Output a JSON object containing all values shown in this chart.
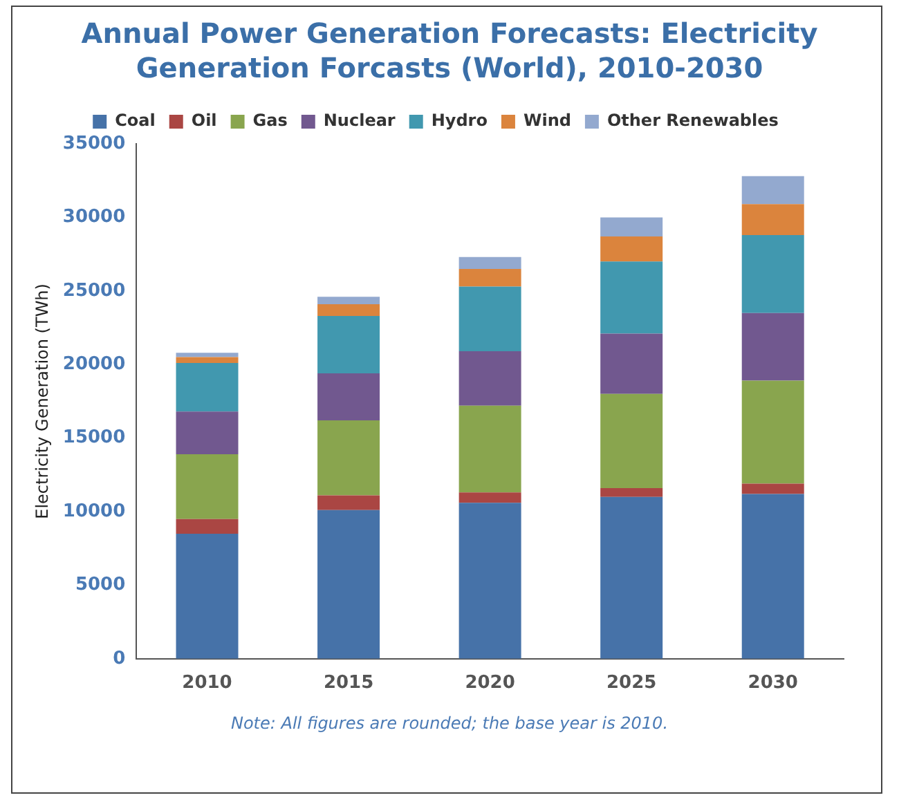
{
  "chart_data": {
    "type": "bar",
    "stacked": true,
    "title": "Annual Power Generation Forecasts: Electricity Generation Forcasts (World), 2010-2030",
    "ylabel": "Electricity Generation (TWh)",
    "categories": [
      "2010",
      "2015",
      "2020",
      "2025",
      "2030"
    ],
    "series": [
      {
        "name": "Coal",
        "color": "#4672a8",
        "values": [
          8500,
          10100,
          10600,
          11000,
          11200
        ]
      },
      {
        "name": "Oil",
        "color": "#aa4643",
        "values": [
          1000,
          1000,
          700,
          600,
          700
        ]
      },
      {
        "name": "Gas",
        "color": "#89a54e",
        "values": [
          4400,
          5100,
          5900,
          6400,
          7000
        ]
      },
      {
        "name": "Nuclear",
        "color": "#71588f",
        "values": [
          2900,
          3200,
          3700,
          4100,
          4600
        ]
      },
      {
        "name": "Hydro",
        "color": "#4198af",
        "values": [
          3300,
          3900,
          4400,
          4900,
          5300
        ]
      },
      {
        "name": "Wind",
        "color": "#db843d",
        "values": [
          400,
          800,
          1200,
          1700,
          2100
        ]
      },
      {
        "name": "Other Renewables",
        "color": "#93a9cf",
        "values": [
          300,
          500,
          800,
          1300,
          1900
        ]
      }
    ],
    "ylim": [
      0,
      35000
    ],
    "yticks": [
      0,
      5000,
      10000,
      15000,
      20000,
      25000,
      30000,
      35000
    ],
    "grid": false,
    "legend": "top",
    "annotations": [
      "Note: All figures are rounded; the base year is 2010."
    ]
  }
}
